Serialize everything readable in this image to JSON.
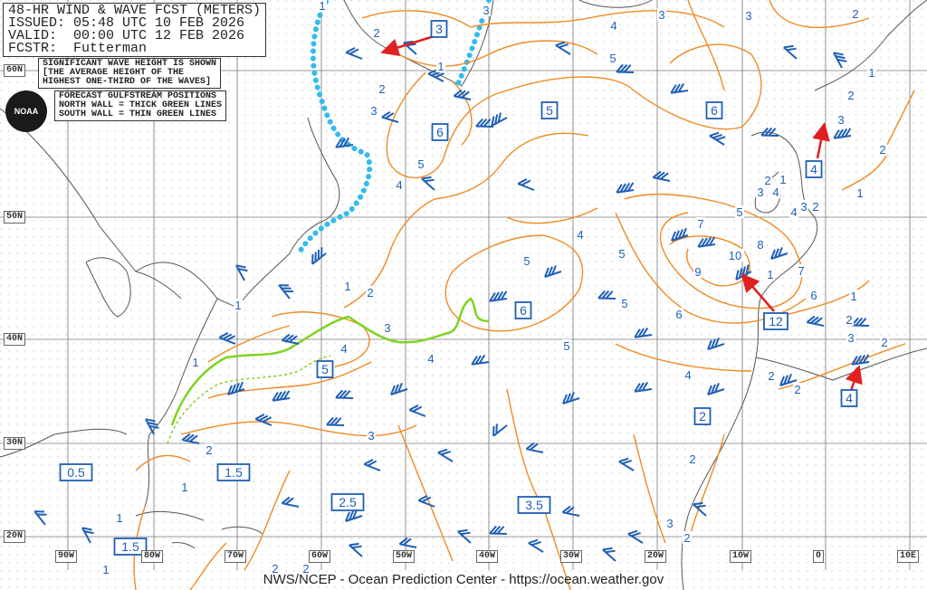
{
  "header": {
    "line1": "48-HR WIND & WAVE FCST (METERS)",
    "line2": "ISSUED: 05:48 UTC 10 FEB 2026",
    "line3": "VALID:  00:00 UTC 12 FEB 2026",
    "line4": "FCSTR:  Futterman"
  },
  "notes": {
    "sig_wave": "SIGNIFICANT WAVE HEIGHT IS SHOWN\n[THE AVERAGE HEIGHT OF THE\nHIGHEST ONE-THIRD OF THE WAVES]",
    "gulfstream": "FORECAST GULFSTREAM POSITIONS\nNORTH WALL = THICK GREEN LINES\nSOUTH WALL = THIN GREEN LINES"
  },
  "logo": "NOAA",
  "footer": "NWS/NCEP - Ocean Prediction Center - https://ocean.weather.gov",
  "lat_labels": [
    "60N",
    "50N",
    "40N",
    "30N",
    "20N"
  ],
  "lon_labels": [
    "90W",
    "80W",
    "70W",
    "60W",
    "50W",
    "40W",
    "30W",
    "20W",
    "10W",
    "0",
    "10E"
  ],
  "boxed_wave_heights": [
    "3",
    "5",
    "6",
    "6",
    "4",
    "6",
    "5",
    "12",
    "4",
    "2",
    "0.5",
    "1.5",
    "2.5",
    "3.5",
    "1.5"
  ],
  "contour_labels": [
    "1",
    "3",
    "2",
    "3",
    "3",
    "4",
    "2",
    "1",
    "5",
    "2",
    "3",
    "1",
    "2",
    "3",
    "2",
    "5",
    "4",
    "2",
    "1",
    "4",
    "3",
    "1",
    "4",
    "3",
    "2",
    "5",
    "7",
    "4",
    "8",
    "10",
    "9",
    "1",
    "7",
    "6",
    "6",
    "5",
    "5",
    "5",
    "1",
    "2",
    "1",
    "3",
    "4",
    "4",
    "5",
    "1",
    "2",
    "3",
    "2",
    "1",
    "4",
    "2",
    "2",
    "3",
    "2",
    "2",
    "1",
    "1",
    "3",
    "2",
    "2",
    "1",
    "2"
  ],
  "colors": {
    "contour": "#f08a24",
    "label": "#1f5fb4",
    "barb": "#1f5fb4",
    "gulfstream": "#7ed321",
    "ice_edge": "#33bbee",
    "arrow": "#e02020",
    "coast": "#555555"
  }
}
